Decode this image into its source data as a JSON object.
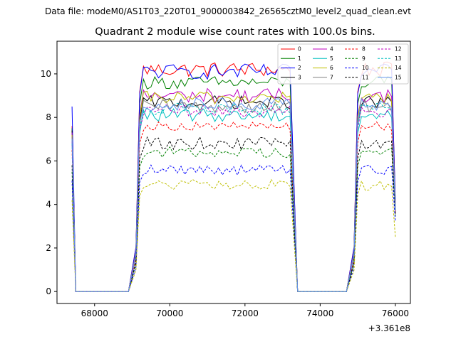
{
  "figure": {
    "suptitle": "Data file: modeM0/AS1T03_220T01_9000003842_26565cztM0_level2_quad_clean.evt",
    "offset_label": "+3.361e8"
  },
  "chart_data": {
    "type": "line",
    "title": "Quadrant 2 module wise count rates with 100.0s bins.",
    "xlabel": "",
    "ylabel": "",
    "xlim": [
      67000,
      76400
    ],
    "ylim": [
      -0.55,
      11.5
    ],
    "x_ticks": [
      68000,
      70000,
      72000,
      74000,
      76000
    ],
    "x_tick_labels": [
      "68000",
      "70000",
      "72000",
      "74000",
      "76000"
    ],
    "y_ticks": [
      0,
      2,
      4,
      6,
      8,
      10
    ],
    "y_tick_labels": [
      "0",
      "2",
      "4",
      "6",
      "8",
      "10"
    ],
    "grid": false,
    "legend_position": "top-right",
    "legend_columns": 4,
    "segments": [
      {
        "x_start": 67500,
        "x_end": 68900,
        "kind": "zero"
      },
      {
        "x_start": 69100,
        "x_end": 73200,
        "kind": "on"
      },
      {
        "x_start": 73400,
        "x_end": 74700,
        "kind": "zero"
      },
      {
        "x_start": 74900,
        "x_end": 75900,
        "kind": "on"
      }
    ],
    "series": [
      {
        "name": "0",
        "color": "#ff0000",
        "dash": false,
        "start": 7.6,
        "level": 10.2,
        "noise": 0.35,
        "end": 4.0
      },
      {
        "name": "1",
        "color": "#008000",
        "dash": false,
        "start": 7.5,
        "level": 9.6,
        "noise": 0.3,
        "end": 4.1
      },
      {
        "name": "2",
        "color": "#0000ff",
        "dash": false,
        "start": 8.5,
        "level": 10.1,
        "noise": 0.35,
        "end": 4.2
      },
      {
        "name": "3",
        "color": "#000000",
        "dash": false,
        "start": 7.4,
        "level": 8.7,
        "noise": 0.3,
        "end": 3.9
      },
      {
        "name": "4",
        "color": "#bf00bf",
        "dash": false,
        "start": 7.3,
        "level": 9.0,
        "noise": 0.35,
        "end": 4.0
      },
      {
        "name": "5",
        "color": "#00bfbf",
        "dash": false,
        "start": 7.0,
        "level": 8.1,
        "noise": 0.3,
        "end": 3.8
      },
      {
        "name": "6",
        "color": "#bfbf00",
        "dash": false,
        "start": 7.2,
        "level": 8.9,
        "noise": 0.3,
        "end": 3.9
      },
      {
        "name": "7",
        "color": "#808080",
        "dash": false,
        "start": 7.1,
        "level": 8.5,
        "noise": 0.3,
        "end": 3.8
      },
      {
        "name": "8",
        "color": "#ff0000",
        "dash": true,
        "start": 6.5,
        "level": 7.6,
        "noise": 0.2,
        "end": 3.6
      },
      {
        "name": "9",
        "color": "#008000",
        "dash": true,
        "start": 5.5,
        "level": 6.4,
        "noise": 0.25,
        "end": 3.4
      },
      {
        "name": "10",
        "color": "#0000ff",
        "dash": true,
        "start": 5.1,
        "level": 5.6,
        "noise": 0.25,
        "end": 3.2
      },
      {
        "name": "11",
        "color": "#000000",
        "dash": true,
        "start": 5.8,
        "level": 6.8,
        "noise": 0.3,
        "end": 3.5
      },
      {
        "name": "12",
        "color": "#bf00bf",
        "dash": true,
        "start": 6.9,
        "level": 8.3,
        "noise": 0.3,
        "end": 3.7
      },
      {
        "name": "13",
        "color": "#00bfbf",
        "dash": true,
        "start": 6.8,
        "level": 8.4,
        "noise": 0.3,
        "end": 3.7
      },
      {
        "name": "14",
        "color": "#bfbf00",
        "dash": true,
        "start": 4.2,
        "level": 4.9,
        "noise": 0.25,
        "end": 2.5
      },
      {
        "name": "15",
        "color": "#6495ed",
        "dash": false,
        "start": 7.0,
        "level": 8.6,
        "noise": 0.3,
        "end": 3.8
      }
    ]
  }
}
